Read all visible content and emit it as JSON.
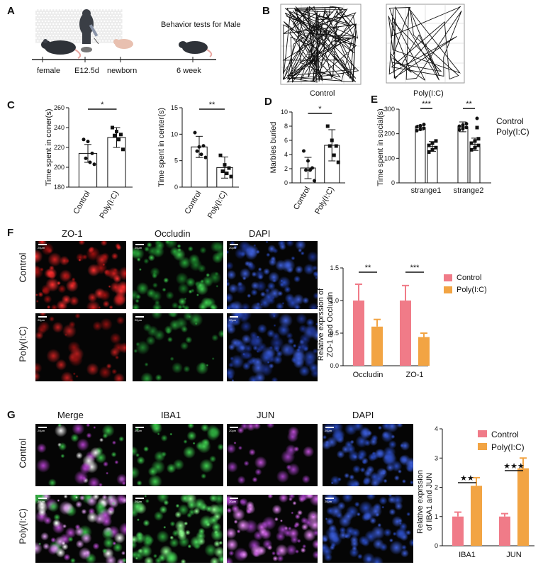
{
  "panels": {
    "A": "A",
    "B": "B",
    "C": "C",
    "D": "D",
    "E": "E",
    "F": "F",
    "G": "G"
  },
  "panelA": {
    "behavior": "Behavior tests for Male",
    "female": "female",
    "e125": "E12.5d",
    "newborn": "newborn",
    "week6": "6 week"
  },
  "panelB": {
    "control": "Control",
    "poly": "Poly(I:C)"
  },
  "panelC": {
    "chart1": {
      "ylabel": "Time spent in coner(s)",
      "sig": "*"
    },
    "chart2": {
      "ylabel": "Time spent in center(s)",
      "sig": "**"
    }
  },
  "panelD": {
    "ylabel": "Marbles buried",
    "sig": "*"
  },
  "panelE": {
    "ylabel": "Time spent in social(s)",
    "sig1": "***",
    "sig2": "**",
    "legend1": "Control",
    "legend2": "Poly(I:C)"
  },
  "panelF": {
    "col1": "ZO-1",
    "col2": "Occludin",
    "col3": "DAPI",
    "row1": "Control",
    "row2": "Poly(I:C)",
    "ylabel1": "Relative exprssion of",
    "ylabel2": "ZO-1 and Occludin",
    "legend1": "Control",
    "legend2": "Poly(I:C)",
    "sig1": "**",
    "sig2": "***"
  },
  "panelG": {
    "col1": "Merge",
    "col2": "IBA1",
    "col3": "JUN",
    "col4": "DAPI",
    "row1": "Control",
    "row2": "Poly(I:C)",
    "ylabel1": "Relative exprssion",
    "ylabel2": "of IBA1 and JUN",
    "legend1": "Control",
    "legend2": "Poly(I:C)",
    "sig1": "★★",
    "sig2": "★★★"
  },
  "colors": {
    "control": "#f07b88",
    "poly": "#f2a443",
    "red": "#e02020",
    "green": "#35c24a",
    "blue": "#3b5bd6",
    "magenta": "#c04ad6"
  },
  "scalebar": "20μm",
  "chart_data": [
    {
      "type": "bar",
      "id": "C1",
      "categories": [
        "Control",
        "Poly(I:C)"
      ],
      "values": [
        214,
        230
      ],
      "errors": [
        9,
        10
      ],
      "points": [
        [
          228,
          226,
          214,
          209,
          205,
          203
        ],
        [
          240,
          236,
          233,
          232,
          228,
          218
        ]
      ],
      "ylim": [
        180,
        260
      ],
      "yticks": [
        180,
        200,
        220,
        240,
        260
      ],
      "ylabel": "Time spent in coner(s)"
    },
    {
      "type": "bar",
      "id": "C2",
      "categories": [
        "Control",
        "Poly(I:C)"
      ],
      "values": [
        7.6,
        3.7
      ],
      "errors": [
        2,
        2
      ],
      "points": [
        [
          10.3,
          7.6,
          7.8,
          6.8,
          6.2,
          5.6
        ],
        [
          6.0,
          4.2,
          3.6,
          3.0,
          2.6,
          2.0
        ]
      ],
      "ylim": [
        0,
        15
      ],
      "yticks": [
        0,
        5,
        10,
        15
      ],
      "ylabel": "Time spent in center(s)"
    },
    {
      "type": "bar",
      "id": "D",
      "categories": [
        "Control",
        "Poly(I:C)"
      ],
      "values": [
        2.1,
        5.3
      ],
      "errors": [
        1.5,
        2.2
      ],
      "points": [
        [
          4.5,
          3.1,
          2.1,
          1.8,
          1.8,
          0.3
        ],
        [
          8.0,
          6.0,
          5.2,
          5.2,
          3.9,
          2.9
        ]
      ],
      "ylim": [
        0,
        10
      ],
      "yticks": [
        0,
        2,
        4,
        6,
        8,
        10
      ],
      "ylabel": "Marbles buried"
    },
    {
      "type": "bar",
      "id": "E",
      "categories": [
        "strange1",
        "strange2"
      ],
      "series": [
        {
          "name": "Control",
          "values": [
            225,
            228
          ],
          "errors": [
            10,
            20
          ]
        },
        {
          "name": "Poly(I:C)",
          "values": [
            148,
            157
          ],
          "errors": [
            20,
            25
          ]
        }
      ],
      "ylim": [
        0,
        300
      ],
      "yticks": [
        0,
        100,
        200,
        300
      ],
      "ylabel": "Time spent in social(s)"
    },
    {
      "type": "bar",
      "id": "F",
      "categories": [
        "Occludin",
        "ZO-1"
      ],
      "series": [
        {
          "name": "Control",
          "values": [
            1.0,
            1.0
          ],
          "errors": [
            0.25,
            0.23
          ]
        },
        {
          "name": "Poly(I:C)",
          "values": [
            0.6,
            0.44
          ],
          "errors": [
            0.11,
            0.06
          ]
        }
      ],
      "ylim": [
        0,
        1.5
      ],
      "yticks": [
        0.0,
        0.5,
        1.0,
        1.5
      ],
      "ylabel": "Relative exprssion of ZO-1 and Occludin"
    },
    {
      "type": "bar",
      "id": "G",
      "categories": [
        "IBA1",
        "JUN"
      ],
      "series": [
        {
          "name": "Control",
          "values": [
            1.0,
            1.0
          ],
          "errors": [
            0.15,
            0.1
          ]
        },
        {
          "name": "Poly(I:C)",
          "values": [
            2.05,
            2.65
          ],
          "errors": [
            0.28,
            0.35
          ]
        }
      ],
      "ylim": [
        0,
        4
      ],
      "yticks": [
        0,
        1,
        2,
        3,
        4
      ],
      "ylabel": "Relative exprssion of IBA1 and JUN"
    }
  ]
}
